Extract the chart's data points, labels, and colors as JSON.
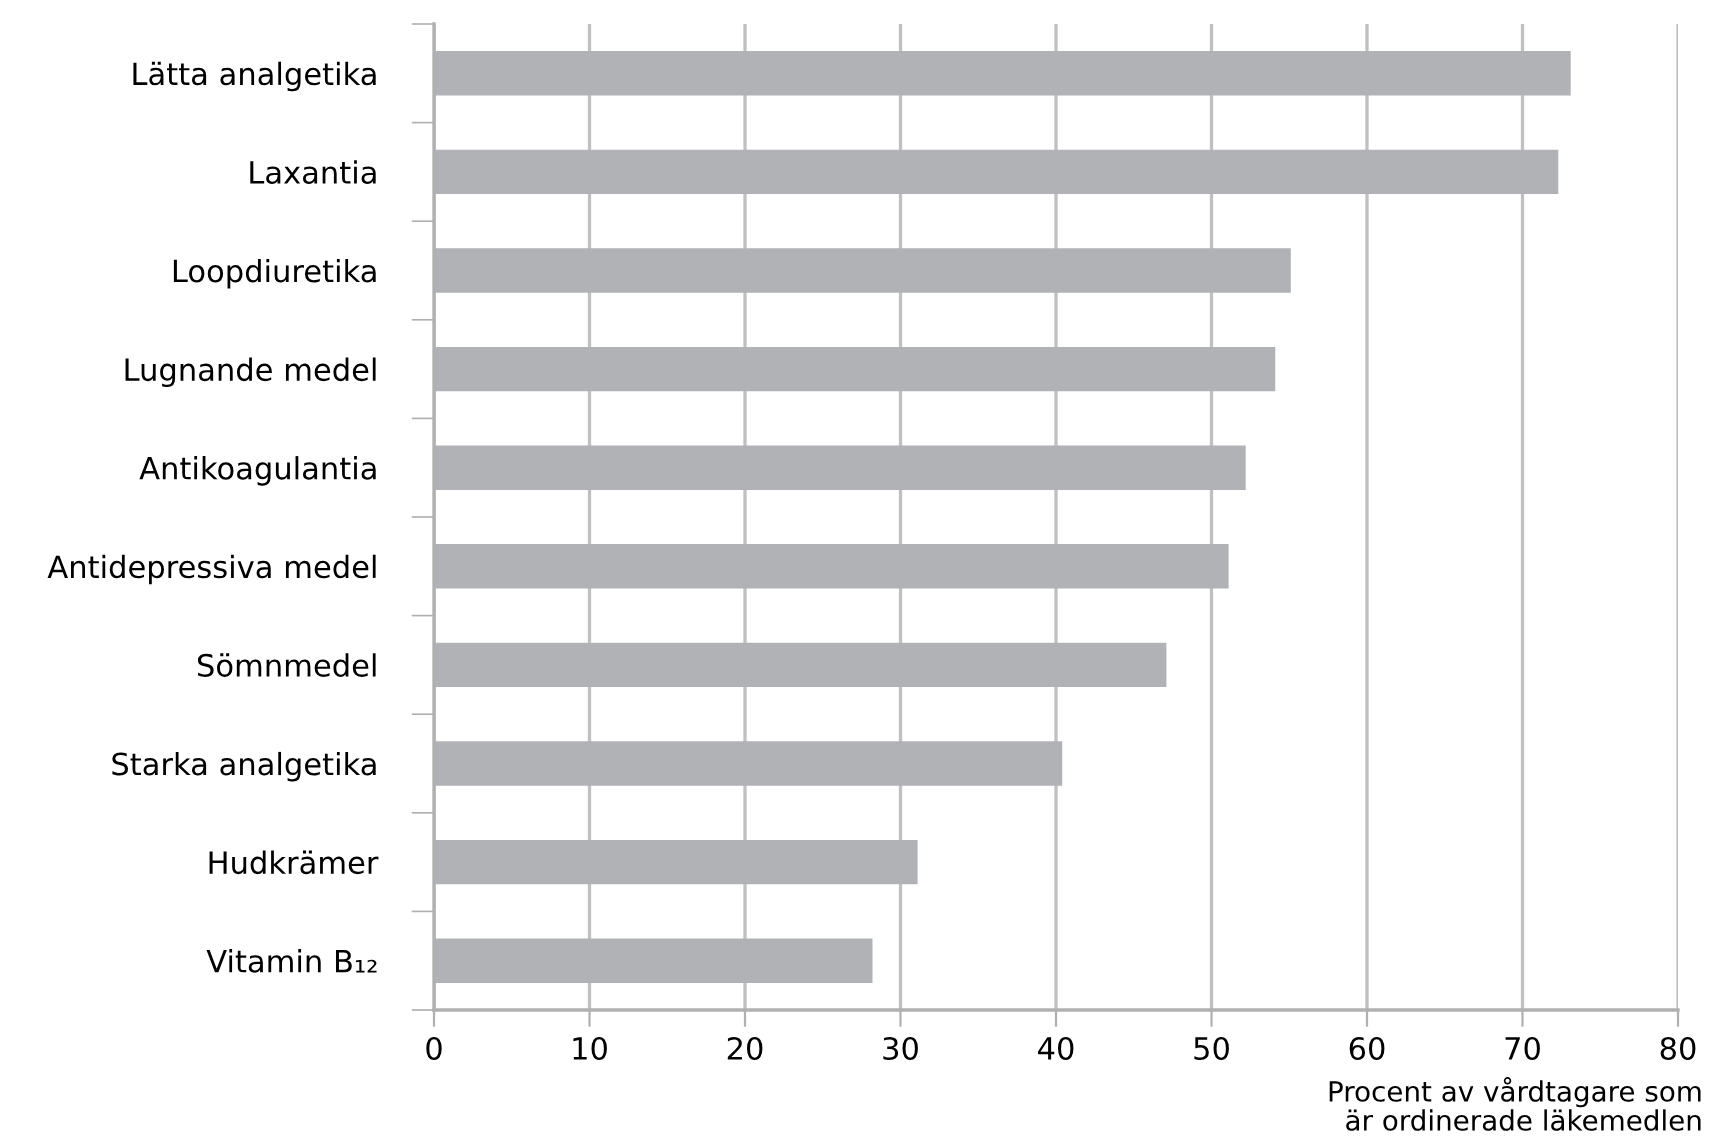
{
  "chart_data": {
    "type": "bar",
    "orientation": "horizontal",
    "categories": [
      "Lätta analgetika",
      "Laxantia",
      "Loopdiuretika",
      "Lugnande medel",
      "Antikoagulantia",
      "Antidepressiva medel",
      "Sömnmedel",
      "Starka analgetika",
      "Hudkrämer",
      "Vitamin B₁₂"
    ],
    "values": [
      73.1,
      72.3,
      55.1,
      54.1,
      52.2,
      51.1,
      47.1,
      40.4,
      31.1,
      28.2
    ],
    "color": "#b1b2b6",
    "xlim": [
      0,
      80
    ],
    "xticks": [
      0,
      10,
      20,
      30,
      40,
      50,
      60,
      70,
      80
    ],
    "xlabel": "Procent av vårdtagare som\när ordinerade läkemedlen",
    "grid": "x"
  }
}
